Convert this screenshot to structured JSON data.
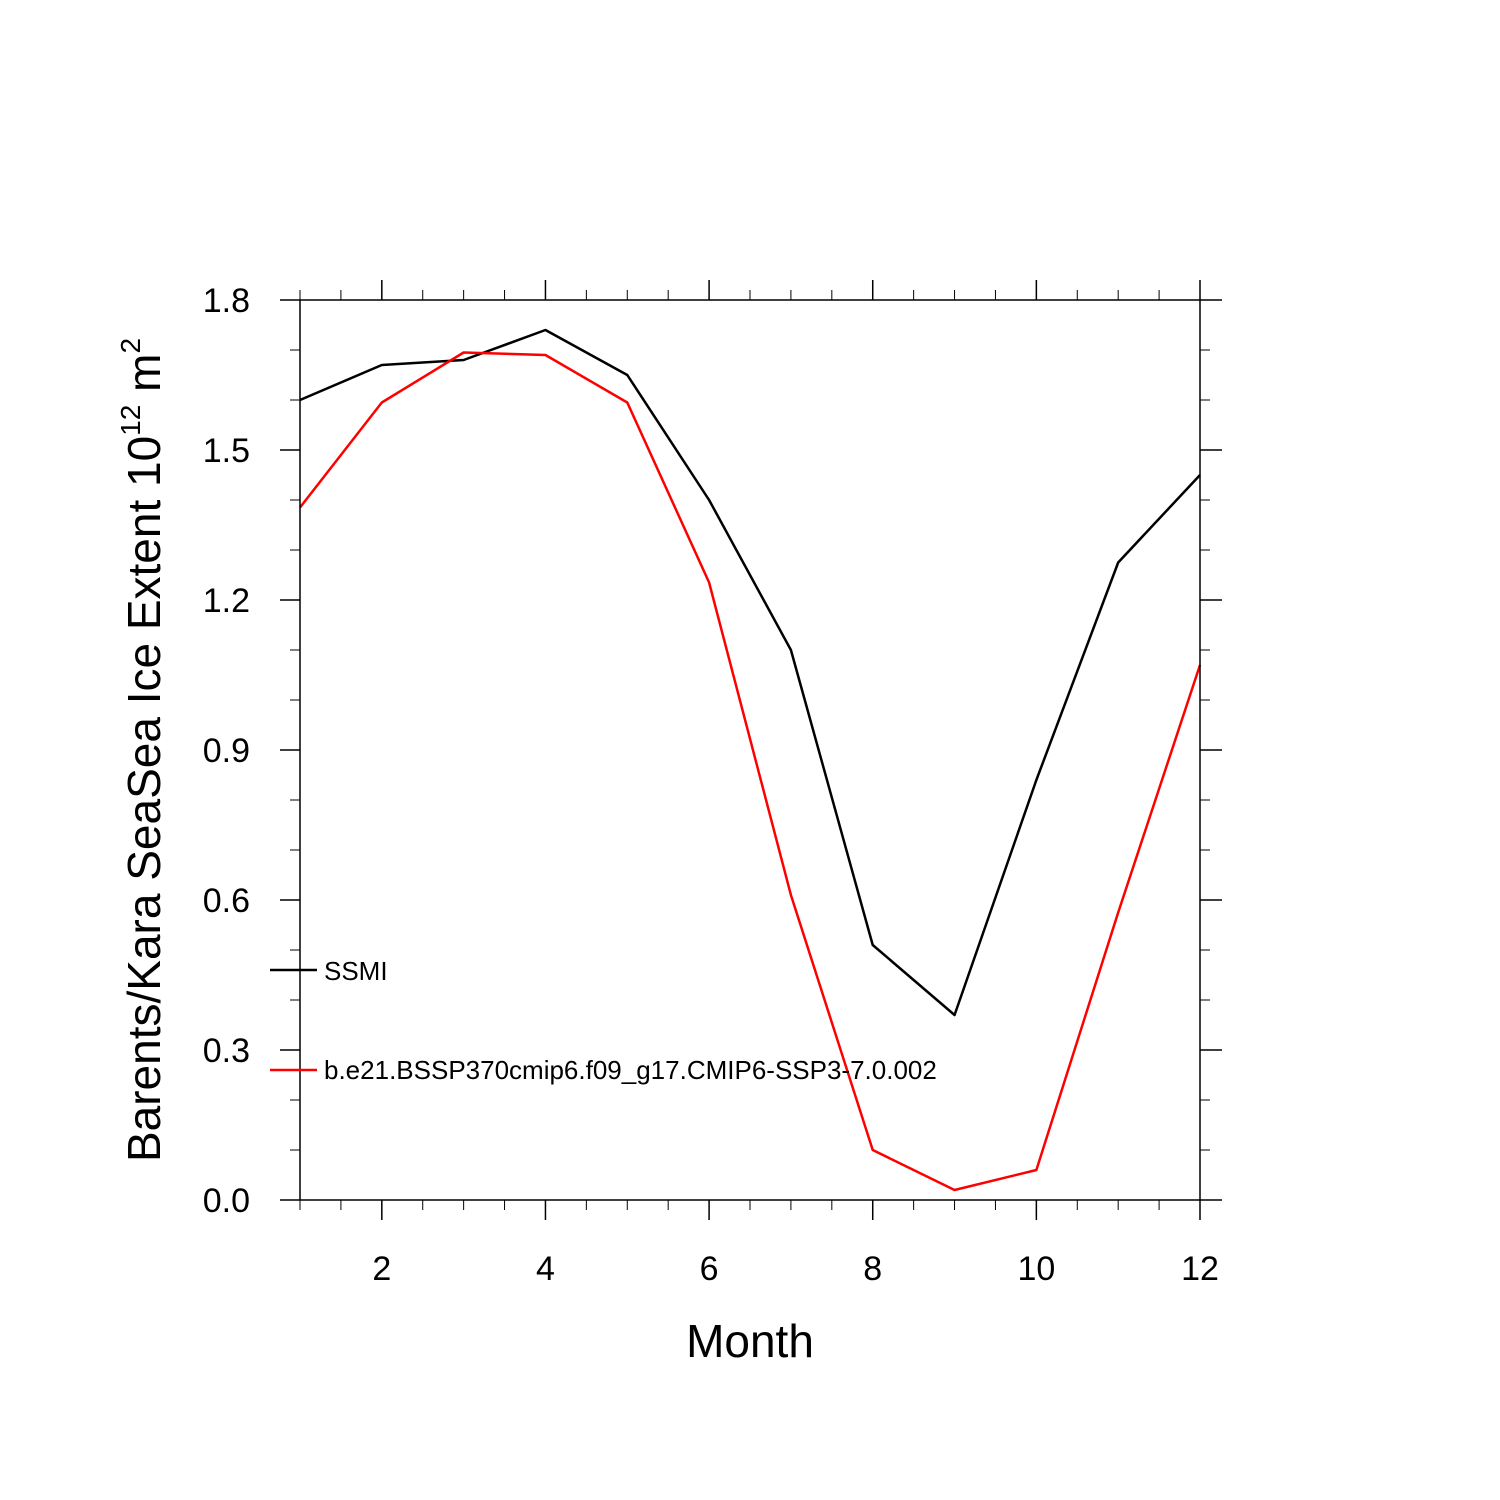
{
  "chart_data": {
    "type": "line",
    "xlabel": "Month",
    "ylabel_text": "Barents/Kara SeaSea Ice Extent 10",
    "ylabel_sup1": "12",
    "ylabel_unit": " m",
    "ylabel_sup2": "2",
    "xlim": [
      1,
      12
    ],
    "ylim": [
      0,
      1.8
    ],
    "xticks": [
      2,
      4,
      6,
      8,
      10,
      12
    ],
    "xtick_labels": [
      "2",
      "4",
      "6",
      "8",
      "10",
      "12"
    ],
    "yticks": [
      0,
      0.3,
      0.6,
      0.9,
      1.2,
      1.5,
      1.8
    ],
    "ytick_labels": [
      "0.0",
      "0.3",
      "0.6",
      "0.9",
      "1.2",
      "1.5",
      "1.8"
    ],
    "legend_position": "lower-left",
    "x": [
      1,
      2,
      3,
      4,
      5,
      6,
      7,
      8,
      9,
      10,
      11,
      12
    ],
    "series": [
      {
        "name": "SSMI",
        "color": "#000000",
        "values": [
          1.6,
          1.67,
          1.68,
          1.74,
          1.65,
          1.4,
          1.1,
          0.51,
          0.37,
          0.84,
          1.275,
          1.45
        ]
      },
      {
        "name": "b.e21.BSSP370cmip6.f09_g17.CMIP6-SSP3-7.0.002",
        "color": "#ff0000",
        "values": [
          1.385,
          1.595,
          1.695,
          1.69,
          1.595,
          1.235,
          0.61,
          0.1,
          0.02,
          0.06,
          0.575,
          1.07
        ]
      }
    ]
  }
}
